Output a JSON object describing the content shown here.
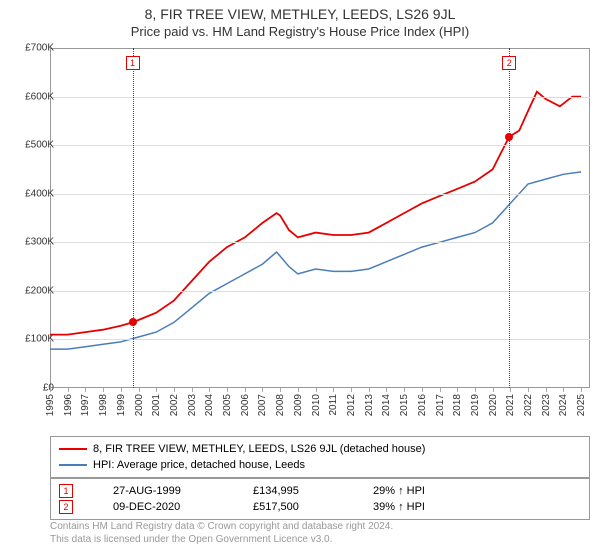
{
  "title": "8, FIR TREE VIEW, METHLEY, LEEDS, LS26 9JL",
  "subtitle": "Price paid vs. HM Land Registry's House Price Index (HPI)",
  "chart": {
    "type": "line",
    "background_color": "#ffffff",
    "grid_color": "#dddddd",
    "border_color": "#999999",
    "x_start_year": 1995,
    "x_end_year": 2025.5,
    "x_ticks": [
      1995,
      1996,
      1997,
      1998,
      1999,
      2000,
      2001,
      2002,
      2003,
      2004,
      2005,
      2006,
      2007,
      2008,
      2009,
      2010,
      2011,
      2012,
      2013,
      2014,
      2015,
      2016,
      2017,
      2018,
      2019,
      2020,
      2021,
      2022,
      2023,
      2024,
      2025
    ],
    "y_min": 0,
    "y_max": 700000,
    "y_ticks": [
      {
        "v": 0,
        "label": "£0"
      },
      {
        "v": 100000,
        "label": "£100K"
      },
      {
        "v": 200000,
        "label": "£200K"
      },
      {
        "v": 300000,
        "label": "£300K"
      },
      {
        "v": 400000,
        "label": "£400K"
      },
      {
        "v": 500000,
        "label": "£500K"
      },
      {
        "v": 600000,
        "label": "£600K"
      },
      {
        "v": 700000,
        "label": "£700K"
      }
    ],
    "series": [
      {
        "name": "8, FIR TREE VIEW, METHLEY, LEEDS, LS26 9JL (detached house)",
        "color": "#e60000",
        "line_width": 1.8,
        "data": [
          [
            1995,
            110000
          ],
          [
            1996,
            110000
          ],
          [
            1997,
            115000
          ],
          [
            1998,
            120000
          ],
          [
            1999,
            128000
          ],
          [
            1999.66,
            134995
          ],
          [
            2000,
            140000
          ],
          [
            2001,
            155000
          ],
          [
            2002,
            180000
          ],
          [
            2003,
            220000
          ],
          [
            2004,
            260000
          ],
          [
            2005,
            290000
          ],
          [
            2006,
            310000
          ],
          [
            2007,
            340000
          ],
          [
            2007.8,
            360000
          ],
          [
            2008,
            355000
          ],
          [
            2008.5,
            325000
          ],
          [
            2009,
            310000
          ],
          [
            2010,
            320000
          ],
          [
            2011,
            315000
          ],
          [
            2012,
            315000
          ],
          [
            2013,
            320000
          ],
          [
            2014,
            340000
          ],
          [
            2015,
            360000
          ],
          [
            2016,
            380000
          ],
          [
            2017,
            395000
          ],
          [
            2018,
            410000
          ],
          [
            2019,
            425000
          ],
          [
            2020,
            450000
          ],
          [
            2020.94,
            517500
          ],
          [
            2021.5,
            530000
          ],
          [
            2022,
            570000
          ],
          [
            2022.5,
            610000
          ],
          [
            2023,
            595000
          ],
          [
            2023.8,
            580000
          ],
          [
            2024.5,
            600000
          ],
          [
            2025,
            600000
          ]
        ]
      },
      {
        "name": "HPI: Average price, detached house, Leeds",
        "color": "#4a7ebb",
        "line_width": 1.5,
        "data": [
          [
            1995,
            80000
          ],
          [
            1996,
            80000
          ],
          [
            1997,
            85000
          ],
          [
            1998,
            90000
          ],
          [
            1999,
            95000
          ],
          [
            2000,
            105000
          ],
          [
            2001,
            115000
          ],
          [
            2002,
            135000
          ],
          [
            2003,
            165000
          ],
          [
            2004,
            195000
          ],
          [
            2005,
            215000
          ],
          [
            2006,
            235000
          ],
          [
            2007,
            255000
          ],
          [
            2007.8,
            280000
          ],
          [
            2008.5,
            250000
          ],
          [
            2009,
            235000
          ],
          [
            2010,
            245000
          ],
          [
            2011,
            240000
          ],
          [
            2012,
            240000
          ],
          [
            2013,
            245000
          ],
          [
            2014,
            260000
          ],
          [
            2015,
            275000
          ],
          [
            2016,
            290000
          ],
          [
            2017,
            300000
          ],
          [
            2018,
            310000
          ],
          [
            2019,
            320000
          ],
          [
            2020,
            340000
          ],
          [
            2021,
            380000
          ],
          [
            2022,
            420000
          ],
          [
            2023,
            430000
          ],
          [
            2024,
            440000
          ],
          [
            2025,
            445000
          ]
        ]
      }
    ],
    "sale_markers": [
      {
        "n": "1",
        "year": 1999.66,
        "price": 134995,
        "color": "#e60000"
      },
      {
        "n": "2",
        "year": 2020.94,
        "price": 517500,
        "color": "#e60000"
      }
    ],
    "vline_color": "#e60000"
  },
  "legend_series": [
    {
      "color": "#e60000",
      "label": "8, FIR TREE VIEW, METHLEY, LEEDS, LS26 9JL (detached house)"
    },
    {
      "color": "#4a7ebb",
      "label": "HPI: Average price, detached house, Leeds"
    }
  ],
  "sales_table": [
    {
      "n": "1",
      "date": "27-AUG-1999",
      "price": "£134,995",
      "delta": "29% ↑ HPI",
      "box_color": "#e60000"
    },
    {
      "n": "2",
      "date": "09-DEC-2020",
      "price": "£517,500",
      "delta": "39% ↑ HPI",
      "box_color": "#e60000"
    }
  ],
  "copyright_line1": "Contains HM Land Registry data © Crown copyright and database right 2024.",
  "copyright_line2": "This data is licensed under the Open Government Licence v3.0."
}
